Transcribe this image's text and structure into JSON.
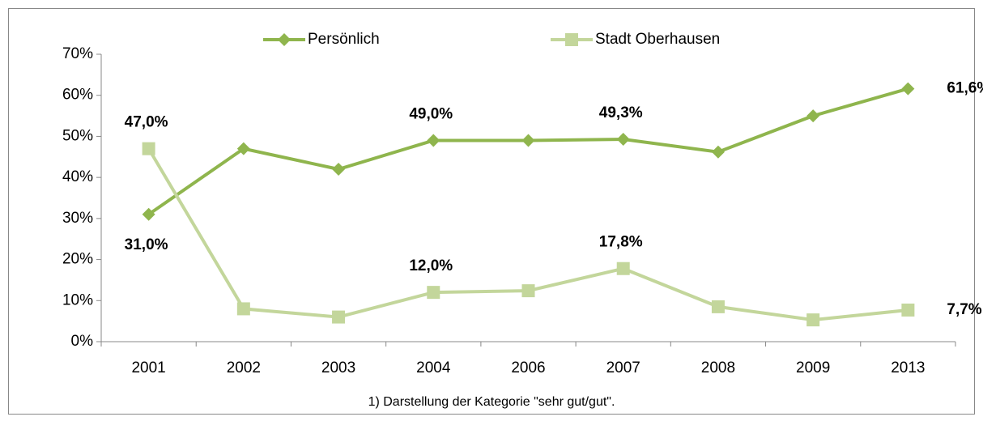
{
  "chart_data": {
    "type": "line",
    "categories": [
      "2001",
      "2002",
      "2003",
      "2004",
      "2006",
      "2007",
      "2008",
      "2009",
      "2013"
    ],
    "series": [
      {
        "name": "Persönlich",
        "color": "#8fb54d",
        "marker": "diamond",
        "values": [
          31.0,
          47,
          42,
          49.0,
          49,
          49.3,
          46.2,
          55,
          61.6
        ],
        "value_labels": [
          "31,0%",
          null,
          null,
          "49,0%",
          null,
          "49,3%",
          null,
          null,
          "61,6%"
        ]
      },
      {
        "name": "Stadt Oberhausen",
        "color": "#c3d69b",
        "marker": "square",
        "values": [
          47.0,
          8,
          6,
          12.0,
          12.4,
          17.8,
          8.5,
          5.3,
          7.7
        ],
        "value_labels": [
          "47,0%",
          null,
          null,
          "12,0%",
          null,
          "17,8%",
          null,
          null,
          "7,7%"
        ]
      }
    ],
    "ylim": [
      0,
      70
    ],
    "yticks": [
      {
        "value": 0,
        "label": "0%"
      },
      {
        "value": 10,
        "label": "10%"
      },
      {
        "value": 20,
        "label": "20%"
      },
      {
        "value": 30,
        "label": "30%"
      },
      {
        "value": 40,
        "label": "40%"
      },
      {
        "value": 50,
        "label": "50%"
      },
      {
        "value": 60,
        "label": "60%"
      },
      {
        "value": 70,
        "label": "70%"
      }
    ],
    "legend": "top",
    "footnote": "1) Darstellung der Kategorie \"sehr gut/gut\"."
  }
}
